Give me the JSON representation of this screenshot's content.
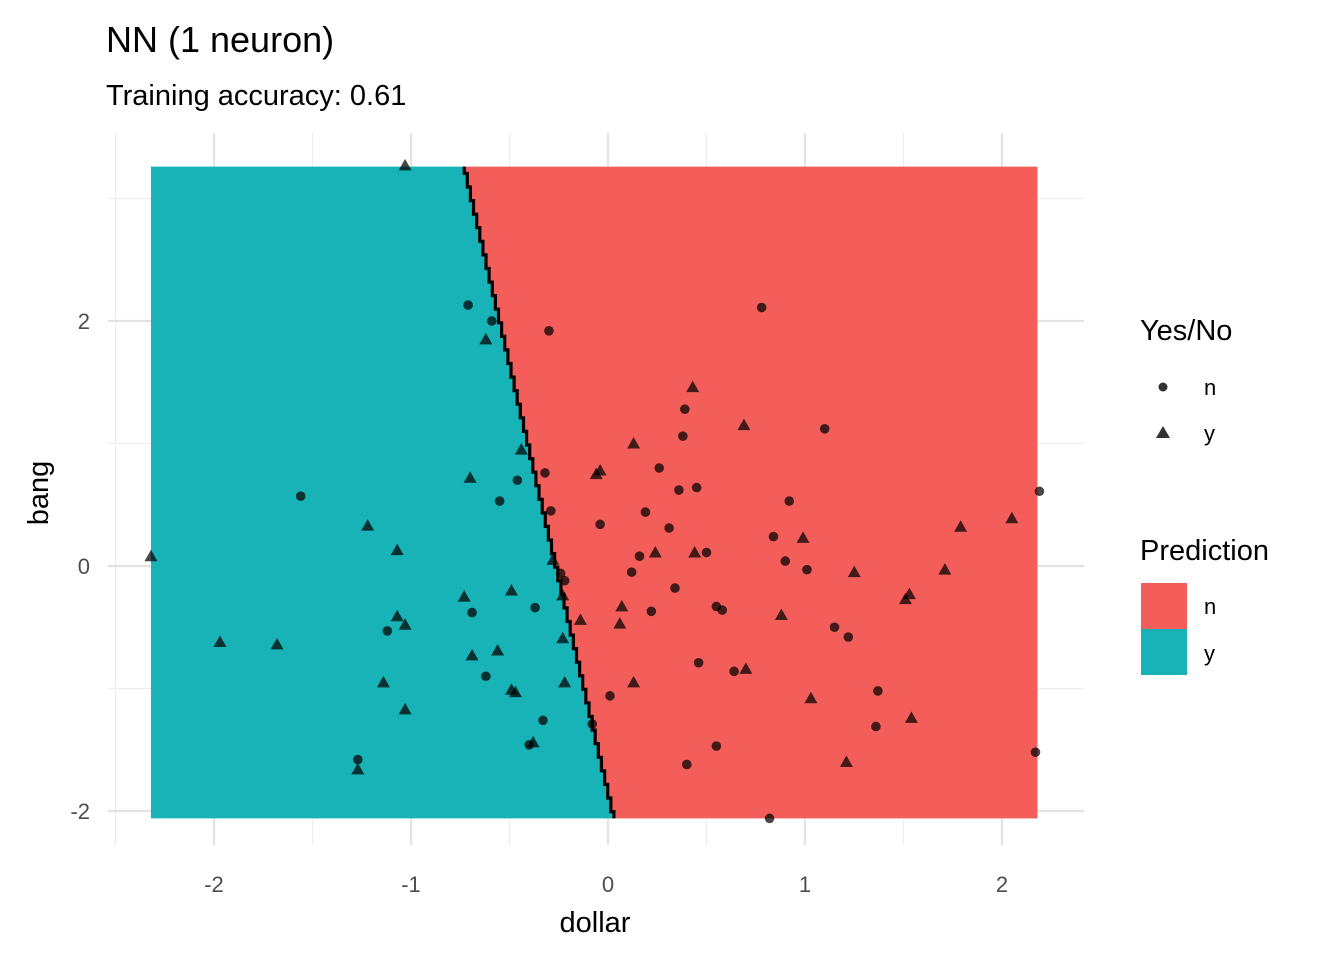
{
  "chart_data": {
    "type": "scatter",
    "title": "NN (1 neuron)",
    "subtitle": "Training accuracy: 0.61",
    "xlabel": "dollar",
    "ylabel": "bang",
    "xlim": [
      -2.5,
      2.4
    ],
    "ylim": [
      -2.2,
      3.5
    ],
    "x_ticks": [
      -2,
      -1,
      0,
      1,
      2
    ],
    "y_ticks": [
      -2,
      0,
      2
    ],
    "grid": true,
    "colors": {
      "n": "#F35E5A",
      "y": "#17B3B7"
    },
    "prediction_region": {
      "x_range": [
        -2.32,
        2.18
      ],
      "y_range": [
        -2.06,
        3.26
      ],
      "boundary": [
        [
          0.03,
          -2.06
        ],
        [
          -0.73,
          3.26
        ]
      ],
      "left_class": "y",
      "right_class": "n"
    },
    "points": [
      {
        "x": -1.03,
        "y": 3.27,
        "shape": "y"
      },
      {
        "x": -0.71,
        "y": 2.13,
        "shape": "n"
      },
      {
        "x": -0.59,
        "y": 2.0,
        "shape": "n"
      },
      {
        "x": -0.3,
        "y": 1.92,
        "shape": "n"
      },
      {
        "x": -0.62,
        "y": 1.85,
        "shape": "y"
      },
      {
        "x": 0.78,
        "y": 2.11,
        "shape": "n"
      },
      {
        "x": 0.43,
        "y": 1.46,
        "shape": "y"
      },
      {
        "x": 0.39,
        "y": 1.28,
        "shape": "n"
      },
      {
        "x": 0.38,
        "y": 1.06,
        "shape": "n"
      },
      {
        "x": 0.69,
        "y": 1.15,
        "shape": "y"
      },
      {
        "x": 1.1,
        "y": 1.12,
        "shape": "n"
      },
      {
        "x": 0.13,
        "y": 1.0,
        "shape": "y"
      },
      {
        "x": -0.44,
        "y": 0.95,
        "shape": "y"
      },
      {
        "x": 0.26,
        "y": 0.8,
        "shape": "n"
      },
      {
        "x": -0.32,
        "y": 0.76,
        "shape": "n"
      },
      {
        "x": -0.04,
        "y": 0.78,
        "shape": "y"
      },
      {
        "x": -0.06,
        "y": 0.75,
        "shape": "y"
      },
      {
        "x": -0.7,
        "y": 0.72,
        "shape": "y"
      },
      {
        "x": -0.46,
        "y": 0.7,
        "shape": "n"
      },
      {
        "x": 0.36,
        "y": 0.62,
        "shape": "n"
      },
      {
        "x": 0.45,
        "y": 0.64,
        "shape": "n"
      },
      {
        "x": -1.56,
        "y": 0.57,
        "shape": "n"
      },
      {
        "x": -0.55,
        "y": 0.53,
        "shape": "n"
      },
      {
        "x": 0.92,
        "y": 0.53,
        "shape": "n"
      },
      {
        "x": -0.29,
        "y": 0.45,
        "shape": "n"
      },
      {
        "x": 0.19,
        "y": 0.44,
        "shape": "n"
      },
      {
        "x": 2.19,
        "y": 0.61,
        "shape": "n"
      },
      {
        "x": 2.05,
        "y": 0.39,
        "shape": "y"
      },
      {
        "x": 1.79,
        "y": 0.32,
        "shape": "y"
      },
      {
        "x": -1.22,
        "y": 0.33,
        "shape": "y"
      },
      {
        "x": -0.04,
        "y": 0.34,
        "shape": "n"
      },
      {
        "x": 0.31,
        "y": 0.31,
        "shape": "n"
      },
      {
        "x": 0.84,
        "y": 0.24,
        "shape": "n"
      },
      {
        "x": 0.99,
        "y": 0.23,
        "shape": "y"
      },
      {
        "x": -1.07,
        "y": 0.13,
        "shape": "y"
      },
      {
        "x": 0.16,
        "y": 0.08,
        "shape": "n"
      },
      {
        "x": 0.24,
        "y": 0.11,
        "shape": "y"
      },
      {
        "x": 0.44,
        "y": 0.11,
        "shape": "y"
      },
      {
        "x": 0.5,
        "y": 0.11,
        "shape": "n"
      },
      {
        "x": 0.9,
        "y": 0.04,
        "shape": "n"
      },
      {
        "x": -0.28,
        "y": 0.05,
        "shape": "y"
      },
      {
        "x": 1.01,
        "y": -0.03,
        "shape": "n"
      },
      {
        "x": 1.25,
        "y": -0.05,
        "shape": "y"
      },
      {
        "x": 1.71,
        "y": -0.03,
        "shape": "y"
      },
      {
        "x": -0.24,
        "y": -0.06,
        "shape": "n"
      },
      {
        "x": 0.12,
        "y": -0.05,
        "shape": "n"
      },
      {
        "x": -0.22,
        "y": -0.12,
        "shape": "n"
      },
      {
        "x": 0.34,
        "y": -0.18,
        "shape": "n"
      },
      {
        "x": -0.49,
        "y": -0.2,
        "shape": "y"
      },
      {
        "x": -0.23,
        "y": -0.24,
        "shape": "y"
      },
      {
        "x": 1.53,
        "y": -0.23,
        "shape": "y"
      },
      {
        "x": 1.51,
        "y": -0.27,
        "shape": "y"
      },
      {
        "x": -0.73,
        "y": -0.25,
        "shape": "y"
      },
      {
        "x": -0.37,
        "y": -0.34,
        "shape": "n"
      },
      {
        "x": 0.07,
        "y": -0.33,
        "shape": "y"
      },
      {
        "x": 0.55,
        "y": -0.33,
        "shape": "n"
      },
      {
        "x": 0.58,
        "y": -0.36,
        "shape": "n"
      },
      {
        "x": 0.22,
        "y": -0.37,
        "shape": "n"
      },
      {
        "x": -0.69,
        "y": -0.38,
        "shape": "n"
      },
      {
        "x": -1.07,
        "y": -0.41,
        "shape": "y"
      },
      {
        "x": -0.14,
        "y": -0.44,
        "shape": "y"
      },
      {
        "x": 0.06,
        "y": -0.47,
        "shape": "y"
      },
      {
        "x": 0.88,
        "y": -0.4,
        "shape": "y"
      },
      {
        "x": -1.03,
        "y": -0.48,
        "shape": "y"
      },
      {
        "x": 1.15,
        "y": -0.5,
        "shape": "n"
      },
      {
        "x": -1.12,
        "y": -0.53,
        "shape": "n"
      },
      {
        "x": 1.22,
        "y": -0.58,
        "shape": "n"
      },
      {
        "x": -0.23,
        "y": -0.59,
        "shape": "y"
      },
      {
        "x": -1.97,
        "y": -0.62,
        "shape": "y"
      },
      {
        "x": -1.68,
        "y": -0.64,
        "shape": "y"
      },
      {
        "x": -0.56,
        "y": -0.69,
        "shape": "y"
      },
      {
        "x": -0.69,
        "y": -0.73,
        "shape": "y"
      },
      {
        "x": 0.46,
        "y": -0.79,
        "shape": "n"
      },
      {
        "x": 0.64,
        "y": -0.86,
        "shape": "n"
      },
      {
        "x": 0.7,
        "y": -0.84,
        "shape": "y"
      },
      {
        "x": -0.62,
        "y": -0.9,
        "shape": "n"
      },
      {
        "x": -1.14,
        "y": -0.95,
        "shape": "y"
      },
      {
        "x": -0.22,
        "y": -0.95,
        "shape": "y"
      },
      {
        "x": 0.13,
        "y": -0.95,
        "shape": "y"
      },
      {
        "x": -0.49,
        "y": -1.01,
        "shape": "y"
      },
      {
        "x": -0.47,
        "y": -1.03,
        "shape": "y"
      },
      {
        "x": 1.37,
        "y": -1.02,
        "shape": "n"
      },
      {
        "x": 0.01,
        "y": -1.06,
        "shape": "n"
      },
      {
        "x": 1.03,
        "y": -1.08,
        "shape": "y"
      },
      {
        "x": -1.03,
        "y": -1.17,
        "shape": "y"
      },
      {
        "x": 1.54,
        "y": -1.24,
        "shape": "y"
      },
      {
        "x": -0.33,
        "y": -1.26,
        "shape": "n"
      },
      {
        "x": -0.08,
        "y": -1.29,
        "shape": "n"
      },
      {
        "x": 1.36,
        "y": -1.31,
        "shape": "n"
      },
      {
        "x": -0.38,
        "y": -1.44,
        "shape": "y"
      },
      {
        "x": -0.4,
        "y": -1.46,
        "shape": "n"
      },
      {
        "x": 0.55,
        "y": -1.47,
        "shape": "n"
      },
      {
        "x": 2.17,
        "y": -1.52,
        "shape": "n"
      },
      {
        "x": -1.27,
        "y": -1.58,
        "shape": "n"
      },
      {
        "x": 1.21,
        "y": -1.6,
        "shape": "y"
      },
      {
        "x": 0.4,
        "y": -1.62,
        "shape": "n"
      },
      {
        "x": -1.27,
        "y": -1.66,
        "shape": "y"
      },
      {
        "x": 0.82,
        "y": -2.06,
        "shape": "n"
      },
      {
        "x": -2.32,
        "y": 0.08,
        "shape": "y"
      }
    ]
  },
  "legend": {
    "shape_title": "Yes/No",
    "shape_items": [
      {
        "label": "n",
        "shape": "circle"
      },
      {
        "label": "y",
        "shape": "triangle"
      }
    ],
    "fill_title": "Prediction",
    "fill_items": [
      {
        "label": "n",
        "color": "#F35E5A"
      },
      {
        "label": "y",
        "color": "#17B3B7"
      }
    ]
  }
}
